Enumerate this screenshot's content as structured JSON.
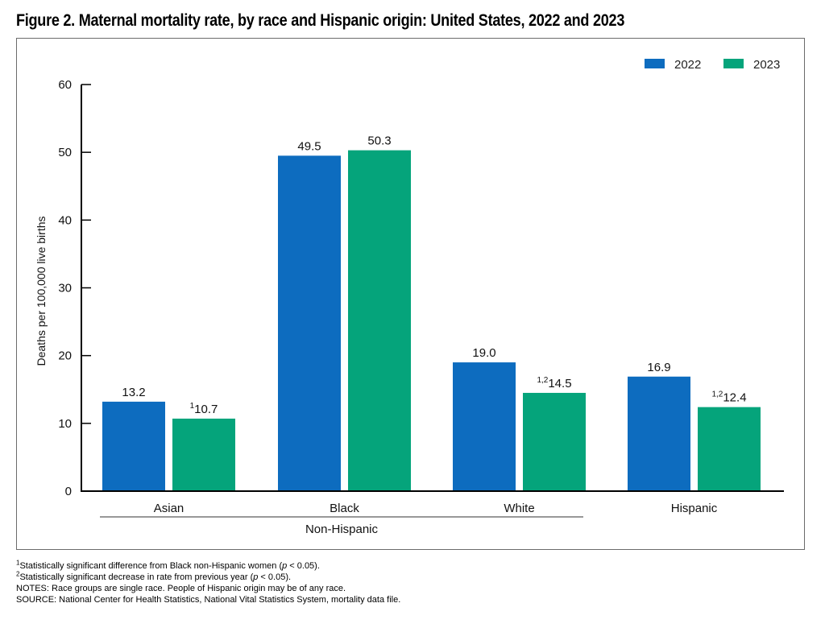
{
  "title": "Figure 2. Maternal mortality rate, by race and Hispanic origin: United States, 2022 and 2023",
  "chart_data": {
    "type": "bar",
    "title": "Figure 2. Maternal mortality rate, by race and Hispanic origin: United States, 2022 and 2023",
    "xlabel": "",
    "ylabel": "Deaths per 100,000 live births",
    "ylim": [
      0,
      60
    ],
    "yticks": [
      0,
      10,
      20,
      30,
      40,
      50,
      60
    ],
    "grid": false,
    "legend_position": "top-right",
    "categories": [
      "Asian",
      "Black",
      "White",
      "Hispanic"
    ],
    "category_group": {
      "label": "Non-Hispanic",
      "members": [
        "Asian",
        "Black",
        "White"
      ]
    },
    "series": [
      {
        "name": "2022",
        "color": "#0d6cbf",
        "values": [
          13.2,
          49.5,
          19.0,
          16.9
        ],
        "labels": [
          "13.2",
          "49.5",
          "19.0",
          "16.9"
        ],
        "label_superscripts": [
          "",
          "",
          "",
          ""
        ]
      },
      {
        "name": "2023",
        "color": "#05a47b",
        "values": [
          10.7,
          50.3,
          14.5,
          12.4
        ],
        "labels": [
          "10.7",
          "50.3",
          "14.5",
          "12.4"
        ],
        "label_superscripts": [
          "1",
          "",
          "1,2",
          "1,2"
        ]
      }
    ]
  },
  "footnotes": {
    "note1_sup": "1",
    "note1_text": "Statistically significant difference from Black non-Hispanic women (",
    "note1_p": "p",
    "note1_tail": " < 0.05).",
    "note2_sup": "2",
    "note2_text": "Statistically significant decrease in rate from previous year (",
    "note2_p": "p",
    "note2_tail": " < 0.05).",
    "notes": "NOTES: Race groups are single race. People of Hispanic origin may be of any race.",
    "source": "SOURCE: National Center for Health Statistics, National Vital Statistics System, mortality data file."
  }
}
